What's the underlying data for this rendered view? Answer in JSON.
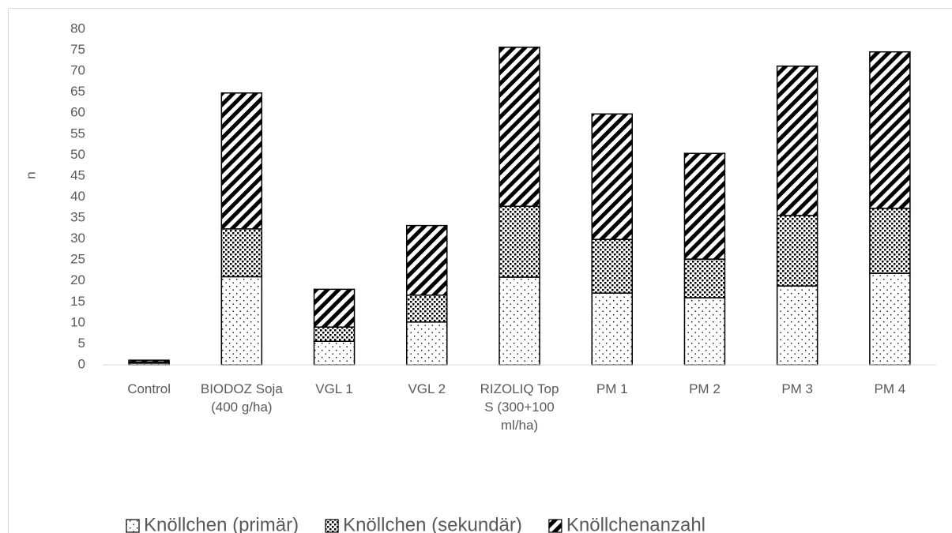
{
  "chart_data": {
    "type": "stacked_bar",
    "y_label": "n",
    "categories": [
      "Control",
      "BIODOZ Soja (400 g/ha)",
      "VGL 1",
      "VGL 2",
      "RIZOLIQ Top S (300+100 ml/ha)",
      "PM 1",
      "PM 2",
      "PM 3",
      "PM 4"
    ],
    "series": [
      {
        "name": "Knöllchen (primär)",
        "color": "#000000",
        "pattern": "dots",
        "values": [
          0.4,
          21,
          5.6,
          10.2,
          20.9,
          17.1,
          16.0,
          18.8,
          21.8
        ]
      },
      {
        "name": "Knöllchen (sekundär)",
        "color": "#000000",
        "pattern": "checker",
        "values": [
          0.3,
          11.4,
          3.4,
          6.4,
          16.9,
          12.8,
          9.2,
          16.8,
          15.5
        ]
      },
      {
        "name": "Knöllchenanzahl",
        "color": "#000000",
        "pattern": "stripes",
        "values": [
          0.4,
          32.4,
          9.0,
          16.6,
          37.9,
          29.9,
          25.2,
          35.6,
          37.3
        ]
      }
    ],
    "ylim": [
      0,
      80
    ],
    "yticks": [
      0,
      5,
      10,
      15,
      20,
      25,
      30,
      35,
      40,
      45,
      50,
      55,
      60,
      65,
      70,
      75,
      80
    ],
    "legend": "bottom"
  }
}
